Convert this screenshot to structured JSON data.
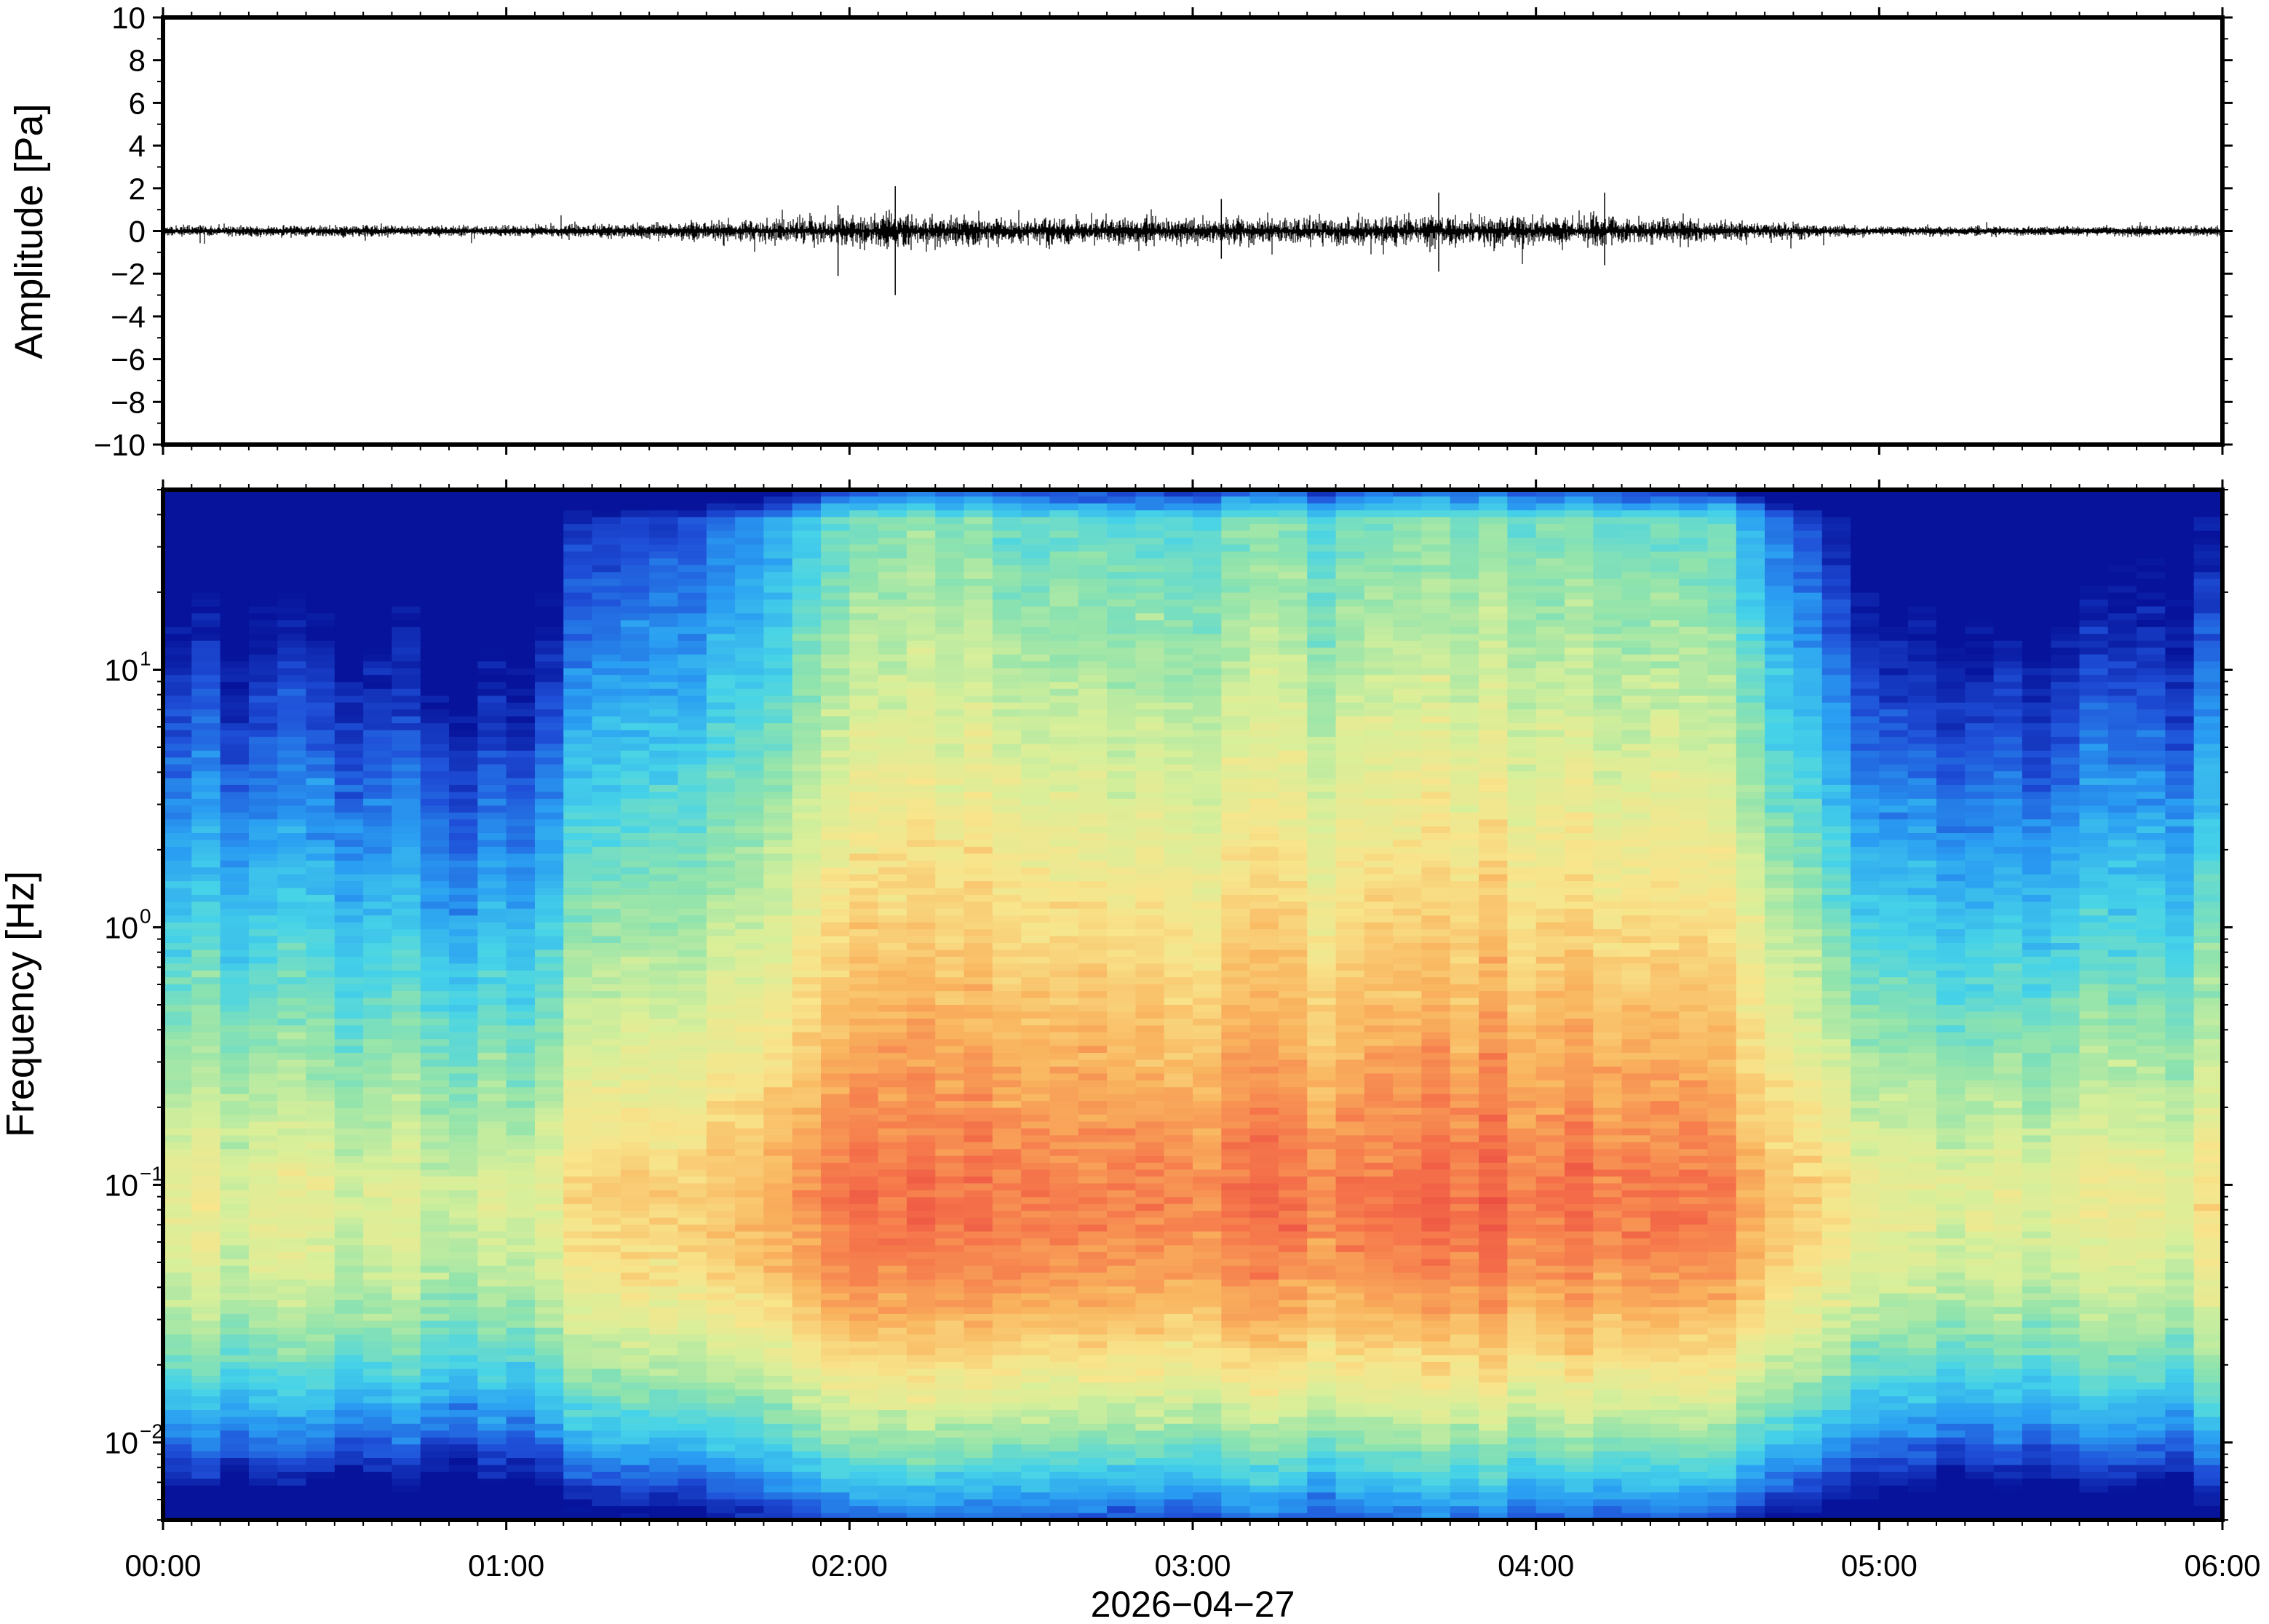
{
  "chart_data": [
    {
      "type": "line",
      "panel": "waveform",
      "ylabel": "Amplitude [Pa]",
      "ylim": [
        -10,
        10
      ],
      "yticks": [
        "10",
        "8",
        "6",
        "4",
        "2",
        "0",
        "−2",
        "−4",
        "−6",
        "−8",
        "−10"
      ],
      "ytick_values": [
        10,
        8,
        6,
        4,
        2,
        0,
        -2,
        -4,
        -6,
        -8,
        -10
      ],
      "xlim": [
        "00:00",
        "06:00"
      ],
      "series_envelope": {
        "time": [
          "00:00",
          "00:30",
          "01:00",
          "01:15",
          "01:30",
          "01:45",
          "02:00",
          "02:10",
          "02:30",
          "03:00",
          "03:30",
          "04:00",
          "04:15",
          "04:30",
          "04:45",
          "05:00",
          "05:30",
          "06:00"
        ],
        "amplitude": [
          0.3,
          0.35,
          0.3,
          0.4,
          0.6,
          0.8,
          1.0,
          1.2,
          0.9,
          0.9,
          1.0,
          1.0,
          1.0,
          0.7,
          0.5,
          0.25,
          0.25,
          0.35
        ]
      },
      "peaks": [
        {
          "time": "02:08",
          "max": 2.1,
          "min": -3.0
        },
        {
          "time": "01:58",
          "max": 1.2,
          "min": -2.1
        },
        {
          "time": "03:43",
          "max": 1.8,
          "min": -1.9
        },
        {
          "time": "04:12",
          "max": 1.8,
          "min": -1.6
        },
        {
          "time": "03:05",
          "max": 1.5,
          "min": -1.3
        }
      ]
    },
    {
      "type": "heatmap",
      "panel": "spectrogram",
      "ylabel": "Frequency [Hz]",
      "yscale": "log",
      "ylim": [
        0.005,
        50
      ],
      "yticks": [
        {
          "value": 10,
          "base": "10",
          "exp": "1"
        },
        {
          "value": 1,
          "base": "10",
          "exp": "0"
        },
        {
          "value": 0.1,
          "base": "10",
          "exp": "−1"
        },
        {
          "value": 0.01,
          "base": "10",
          "exp": "−2"
        }
      ],
      "xlabel": "2026−04−27",
      "xticks": [
        "00:00",
        "01:00",
        "02:00",
        "03:00",
        "04:00",
        "05:00",
        "06:00"
      ],
      "colormap": "spectral (dark blue low → red high)",
      "colors": [
        "#06139a",
        "#1f4fd8",
        "#2a9ef2",
        "#46d3e8",
        "#8fe3ad",
        "#d7ef9a",
        "#f8e58c",
        "#f9b45e",
        "#f5744a",
        "#e84040"
      ],
      "peak_frequency_hz": 0.1,
      "activity": {
        "time": [
          "00:00",
          "00:30",
          "01:00",
          "01:15",
          "01:45",
          "02:00",
          "02:15",
          "02:30",
          "03:00",
          "03:30",
          "04:00",
          "04:30",
          "04:45",
          "05:00",
          "05:30",
          "06:00"
        ],
        "relative_level": [
          0.3,
          0.3,
          0.2,
          0.45,
          0.65,
          0.85,
          0.95,
          0.85,
          0.85,
          0.9,
          0.9,
          0.85,
          0.6,
          0.25,
          0.3,
          0.4
        ]
      }
    }
  ]
}
